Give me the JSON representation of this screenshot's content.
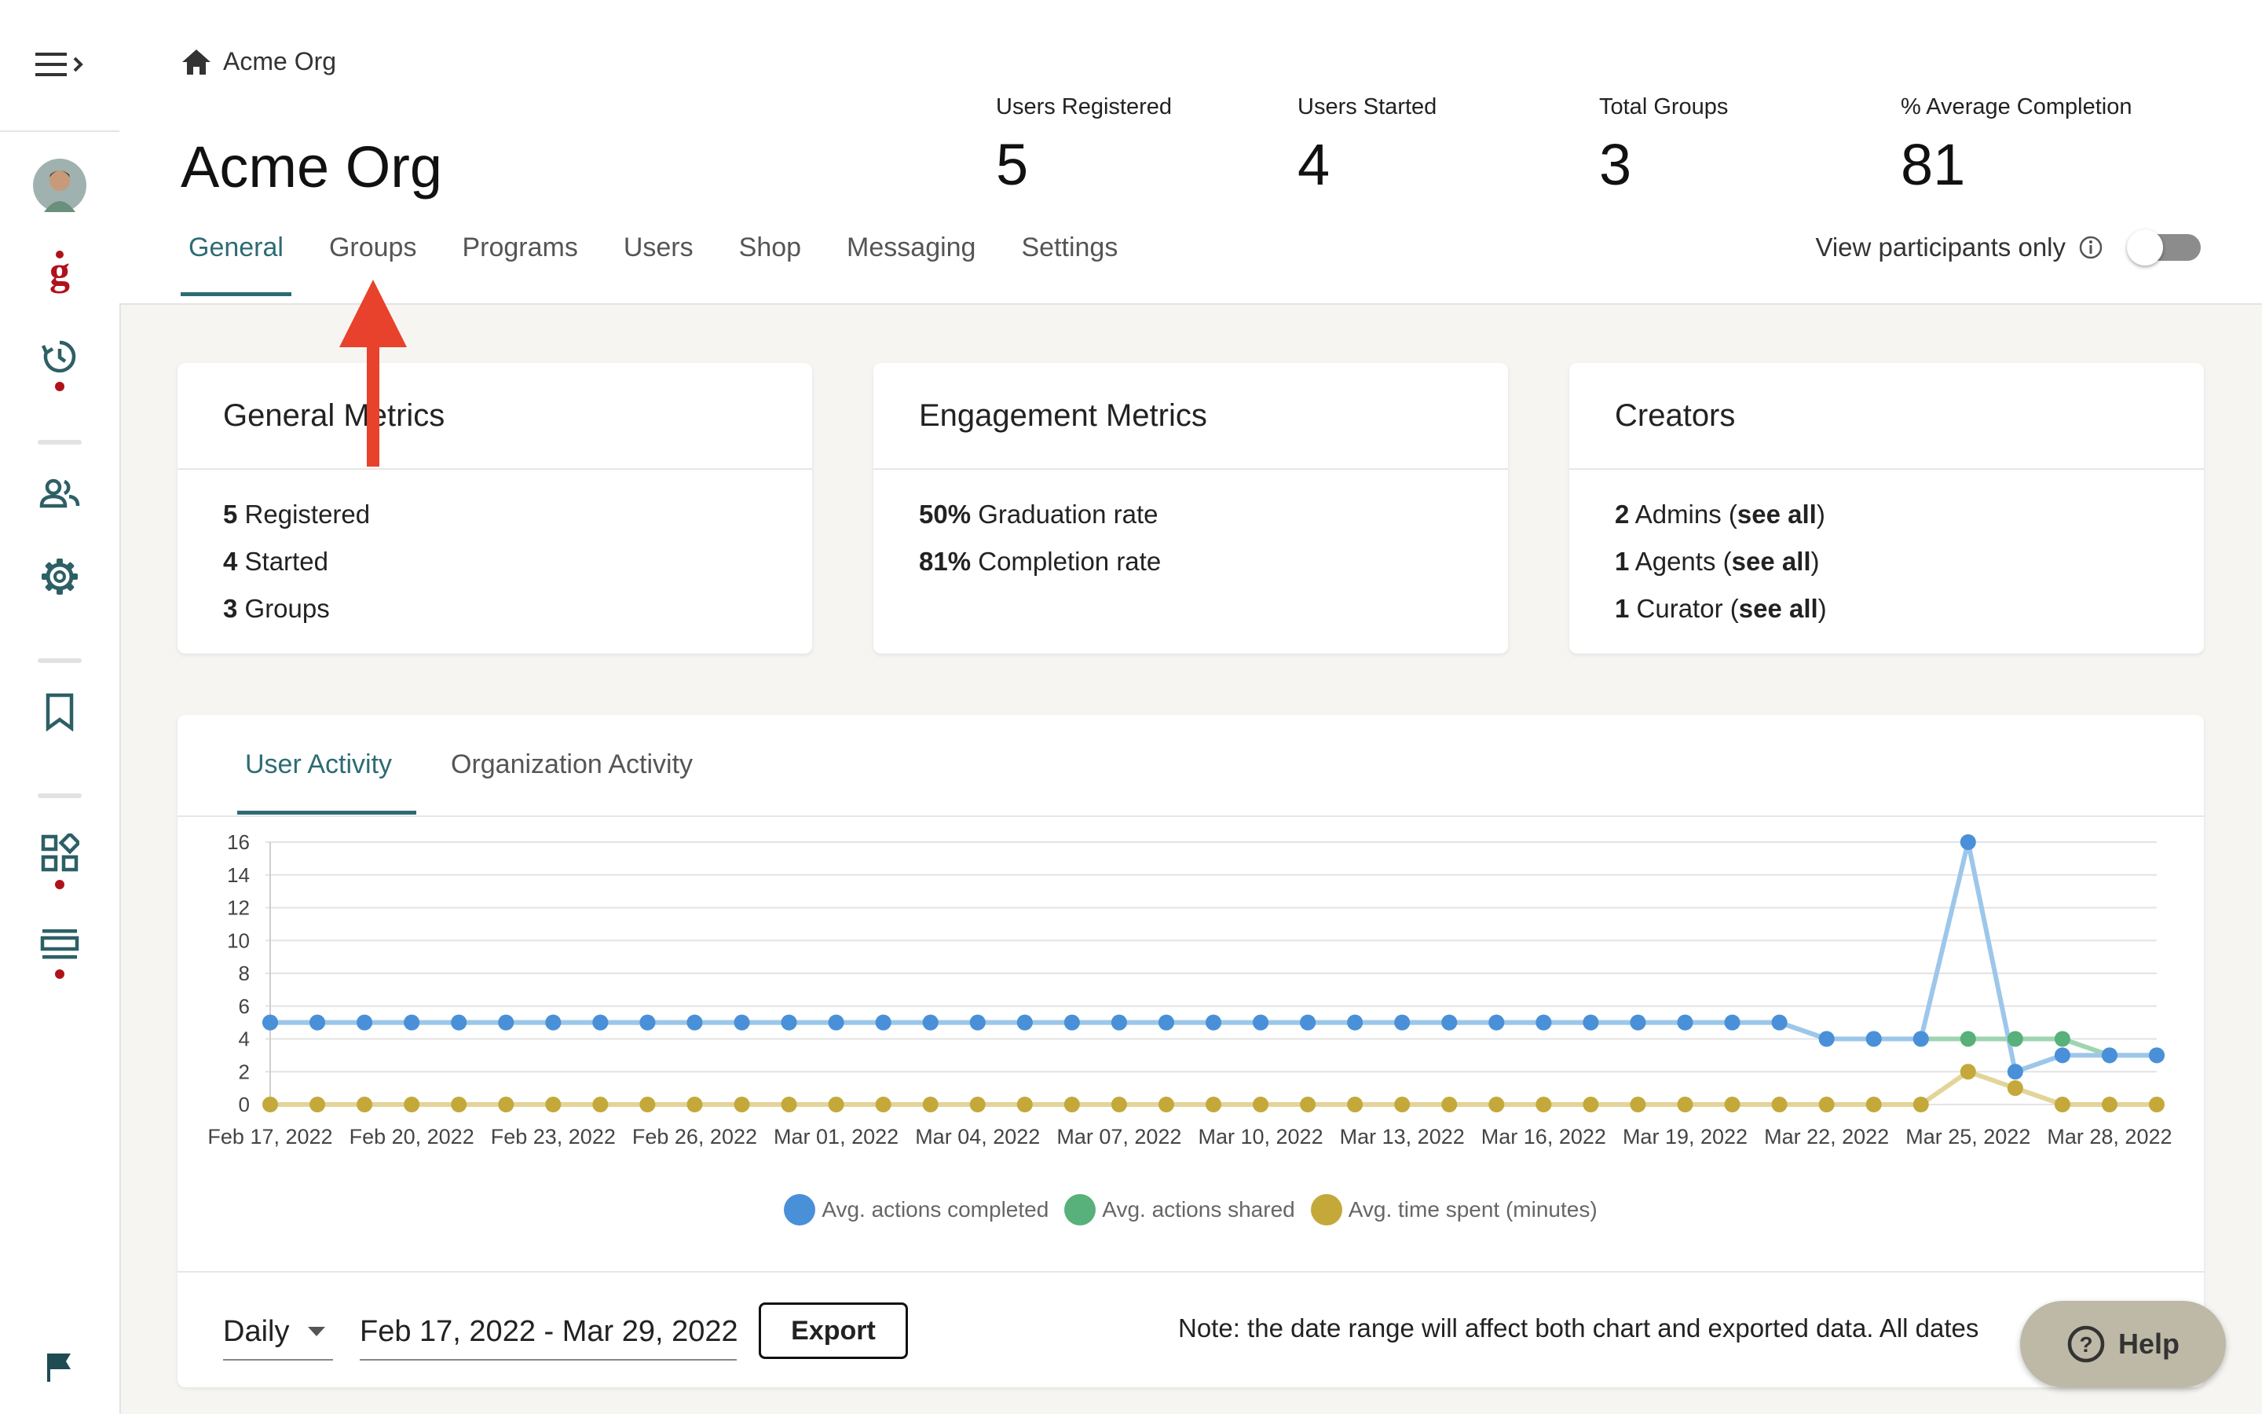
{
  "breadcrumb": {
    "label": "Acme Org"
  },
  "org": {
    "title": "Acme Org"
  },
  "stats": [
    {
      "label": "Users Registered",
      "value": "5"
    },
    {
      "label": "Users Started",
      "value": "4"
    },
    {
      "label": "Total Groups",
      "value": "3"
    },
    {
      "label": "% Average Completion",
      "value": "81"
    }
  ],
  "tabs": [
    "General",
    "Groups",
    "Programs",
    "Users",
    "Shop",
    "Messaging",
    "Settings"
  ],
  "active_tab": "General",
  "view_participants": {
    "label": "View participants only",
    "enabled": false
  },
  "cards": {
    "general": {
      "title": "General Metrics",
      "rows": [
        {
          "n": "5",
          "t": " Registered"
        },
        {
          "n": "4",
          "t": " Started"
        },
        {
          "n": "3",
          "t": " Groups"
        }
      ]
    },
    "engagement": {
      "title": "Engagement Metrics",
      "rows": [
        {
          "n": "50%",
          "t": " Graduation rate"
        },
        {
          "n": "81%",
          "t": " Completion rate"
        }
      ]
    },
    "creators": {
      "title": "Creators",
      "rows": [
        {
          "n": "2",
          "t": " Admins (",
          "link": "see all",
          "end": ")"
        },
        {
          "n": "1",
          "t": " Agents (",
          "link": "see all",
          "end": ")"
        },
        {
          "n": "1",
          "t": " Curator (",
          "link": "see all",
          "end": ")"
        }
      ]
    }
  },
  "activity": {
    "tabs": [
      "User Activity",
      "Organization Activity"
    ],
    "active_tab": "User Activity"
  },
  "chart_data": {
    "type": "line",
    "x": [
      "Feb 17, 2022",
      "Feb 18, 2022",
      "Feb 19, 2022",
      "Feb 20, 2022",
      "Feb 21, 2022",
      "Feb 22, 2022",
      "Feb 23, 2022",
      "Feb 24, 2022",
      "Feb 25, 2022",
      "Feb 26, 2022",
      "Feb 27, 2022",
      "Feb 28, 2022",
      "Mar 01, 2022",
      "Mar 02, 2022",
      "Mar 03, 2022",
      "Mar 04, 2022",
      "Mar 05, 2022",
      "Mar 06, 2022",
      "Mar 07, 2022",
      "Mar 08, 2022",
      "Mar 09, 2022",
      "Mar 10, 2022",
      "Mar 11, 2022",
      "Mar 12, 2022",
      "Mar 13, 2022",
      "Mar 14, 2022",
      "Mar 15, 2022",
      "Mar 16, 2022",
      "Mar 17, 2022",
      "Mar 18, 2022",
      "Mar 19, 2022",
      "Mar 20, 2022",
      "Mar 21, 2022",
      "Mar 22, 2022",
      "Mar 23, 2022",
      "Mar 24, 2022",
      "Mar 25, 2022",
      "Mar 26, 2022",
      "Mar 27, 2022",
      "Mar 28, 2022",
      "Mar 29, 2022"
    ],
    "x_tick_labels": [
      "Feb 17, 2022",
      "Feb 20, 2022",
      "Feb 23, 2022",
      "Feb 26, 2022",
      "Mar 01, 2022",
      "Mar 04, 2022",
      "Mar 07, 2022",
      "Mar 10, 2022",
      "Mar 13, 2022",
      "Mar 16, 2022",
      "Mar 19, 2022",
      "Mar 22, 2022",
      "Mar 25, 2022",
      "Mar 28, 2022"
    ],
    "y_ticks": [
      0,
      2,
      4,
      6,
      8,
      10,
      12,
      14,
      16
    ],
    "ylim": [
      0,
      16
    ],
    "grid": true,
    "legend_position": "bottom",
    "series": [
      {
        "name": "Avg. actions shared",
        "color": "#58b07a",
        "line_color": "#9fd4b1",
        "values": [
          5,
          5,
          5,
          5,
          5,
          5,
          5,
          5,
          5,
          5,
          5,
          5,
          5,
          5,
          5,
          5,
          5,
          5,
          5,
          5,
          5,
          5,
          5,
          5,
          5,
          5,
          5,
          5,
          5,
          5,
          5,
          5,
          5,
          4,
          4,
          4,
          4,
          4,
          4,
          3,
          3
        ]
      },
      {
        "name": "Avg. time spent (minutes)",
        "color": "#c4a93a",
        "line_color": "#e3d49a",
        "values": [
          0,
          0,
          0,
          0,
          0,
          0,
          0,
          0,
          0,
          0,
          0,
          0,
          0,
          0,
          0,
          0,
          0,
          0,
          0,
          0,
          0,
          0,
          0,
          0,
          0,
          0,
          0,
          0,
          0,
          0,
          0,
          0,
          0,
          0,
          0,
          0,
          2,
          1,
          0,
          0,
          0
        ]
      },
      {
        "name": "Avg. actions completed",
        "color": "#4a90d9",
        "line_color": "#9cc7ea",
        "values": [
          5,
          5,
          5,
          5,
          5,
          5,
          5,
          5,
          5,
          5,
          5,
          5,
          5,
          5,
          5,
          5,
          5,
          5,
          5,
          5,
          5,
          5,
          5,
          5,
          5,
          5,
          5,
          5,
          5,
          5,
          5,
          5,
          5,
          4,
          4,
          4,
          16,
          2,
          3,
          3,
          3
        ]
      }
    ],
    "legend_order": [
      "Avg. actions completed",
      "Avg. actions shared",
      "Avg. time spent (minutes)"
    ]
  },
  "footer": {
    "interval": "Daily",
    "date_range": "Feb 17, 2022 - Mar 29, 2022",
    "export_label": "Export",
    "note": "Note: the date range will affect both chart and exported data. All dates"
  },
  "help": {
    "label": "Help"
  },
  "icons": [
    "menu-icon",
    "chevron-right-icon",
    "avatar",
    "brand-g-icon",
    "history-icon",
    "people-icon",
    "gear-icon",
    "bookmark-icon",
    "widgets-icon",
    "list-icon",
    "flag-icon",
    "home-icon",
    "info-icon",
    "help-icon"
  ]
}
